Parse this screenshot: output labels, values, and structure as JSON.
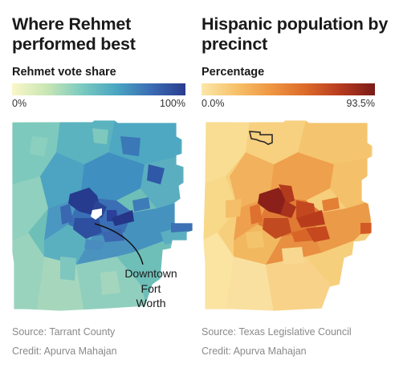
{
  "left_panel": {
    "title": "Where Rehmet performed best",
    "legend_title": "Rehmet vote share",
    "legend_min": "0%",
    "legend_max": "100%",
    "scale_colors": [
      "#faf7c8",
      "#c9e6b4",
      "#7ccbc0",
      "#4aa6c2",
      "#3a6db3",
      "#2a3d8f"
    ],
    "annotation_lines": [
      "Downtown",
      "Fort",
      "Worth"
    ],
    "source": "Source: Tarrant County",
    "credit": "Credit: Apurva Mahajan"
  },
  "right_panel": {
    "title": "Hispanic population by precinct",
    "legend_title": "Percentage",
    "legend_min": "0.0%",
    "legend_max": "93.5%",
    "scale_colors": [
      "#fbe7a8",
      "#f6c16a",
      "#ef9642",
      "#dc6a2a",
      "#b83a1e",
      "#7a1b17"
    ],
    "source": "Source: Texas Legislative Council",
    "credit": "Credit: Apurva Mahajan"
  }
}
